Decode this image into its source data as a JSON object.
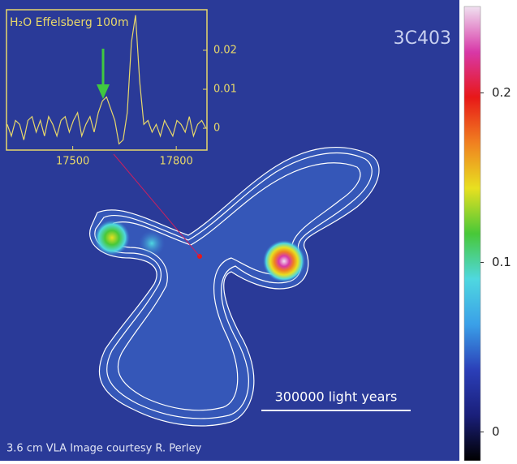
{
  "image": {
    "title": "3C403",
    "scale_bar": "300000 light years",
    "credit": "3.6 cm VLA Image courtesy R. Perley"
  },
  "chart_data": [
    {
      "type": "line",
      "title": "H₂O  Effelsberg 100m",
      "color": "#e8d86a",
      "x": [
        17310,
        17322,
        17334,
        17346,
        17358,
        17370,
        17382,
        17394,
        17406,
        17418,
        17430,
        17442,
        17454,
        17466,
        17478,
        17490,
        17502,
        17514,
        17526,
        17538,
        17550,
        17562,
        17574,
        17586,
        17598,
        17610,
        17622,
        17634,
        17646,
        17658,
        17670,
        17682,
        17694,
        17706,
        17718,
        17730,
        17742,
        17754,
        17766,
        17778,
        17790,
        17802,
        17814,
        17826,
        17838,
        17850,
        17862,
        17874,
        17886
      ],
      "values": [
        0.001,
        -0.002,
        0.002,
        0.001,
        -0.003,
        0.002,
        0.003,
        -0.001,
        0.002,
        -0.002,
        0.003,
        0.001,
        -0.002,
        0.002,
        0.003,
        -0.001,
        0.002,
        0.004,
        -0.002,
        0.001,
        0.003,
        -0.001,
        0.004,
        0.007,
        0.008,
        0.005,
        0.002,
        -0.004,
        -0.003,
        0.004,
        0.022,
        0.029,
        0.012,
        0.001,
        0.002,
        -0.001,
        0.001,
        -0.002,
        0.002,
        0,
        -0.002,
        0.002,
        0.001,
        -0.001,
        0.003,
        -0.002,
        0.001,
        0.002,
        0
      ],
      "xlim": [
        17308,
        17889
      ],
      "xticks": [
        17500,
        17800
      ],
      "ylim": [
        -0.0056,
        0.0304
      ],
      "yticks": [
        0,
        0.01,
        0.02
      ]
    },
    {
      "type": "colorbar",
      "colors": [
        "#000000",
        "#1a1f7a",
        "#2b3fb8",
        "#3aa0e8",
        "#4fd8e0",
        "#48c838",
        "#e8e020",
        "#f08020",
        "#e81818",
        "#d838a8",
        "#f0e0f0"
      ],
      "ylim": [
        -0.017,
        0.251
      ],
      "yticks": [
        0,
        0.1,
        0.2
      ]
    }
  ]
}
